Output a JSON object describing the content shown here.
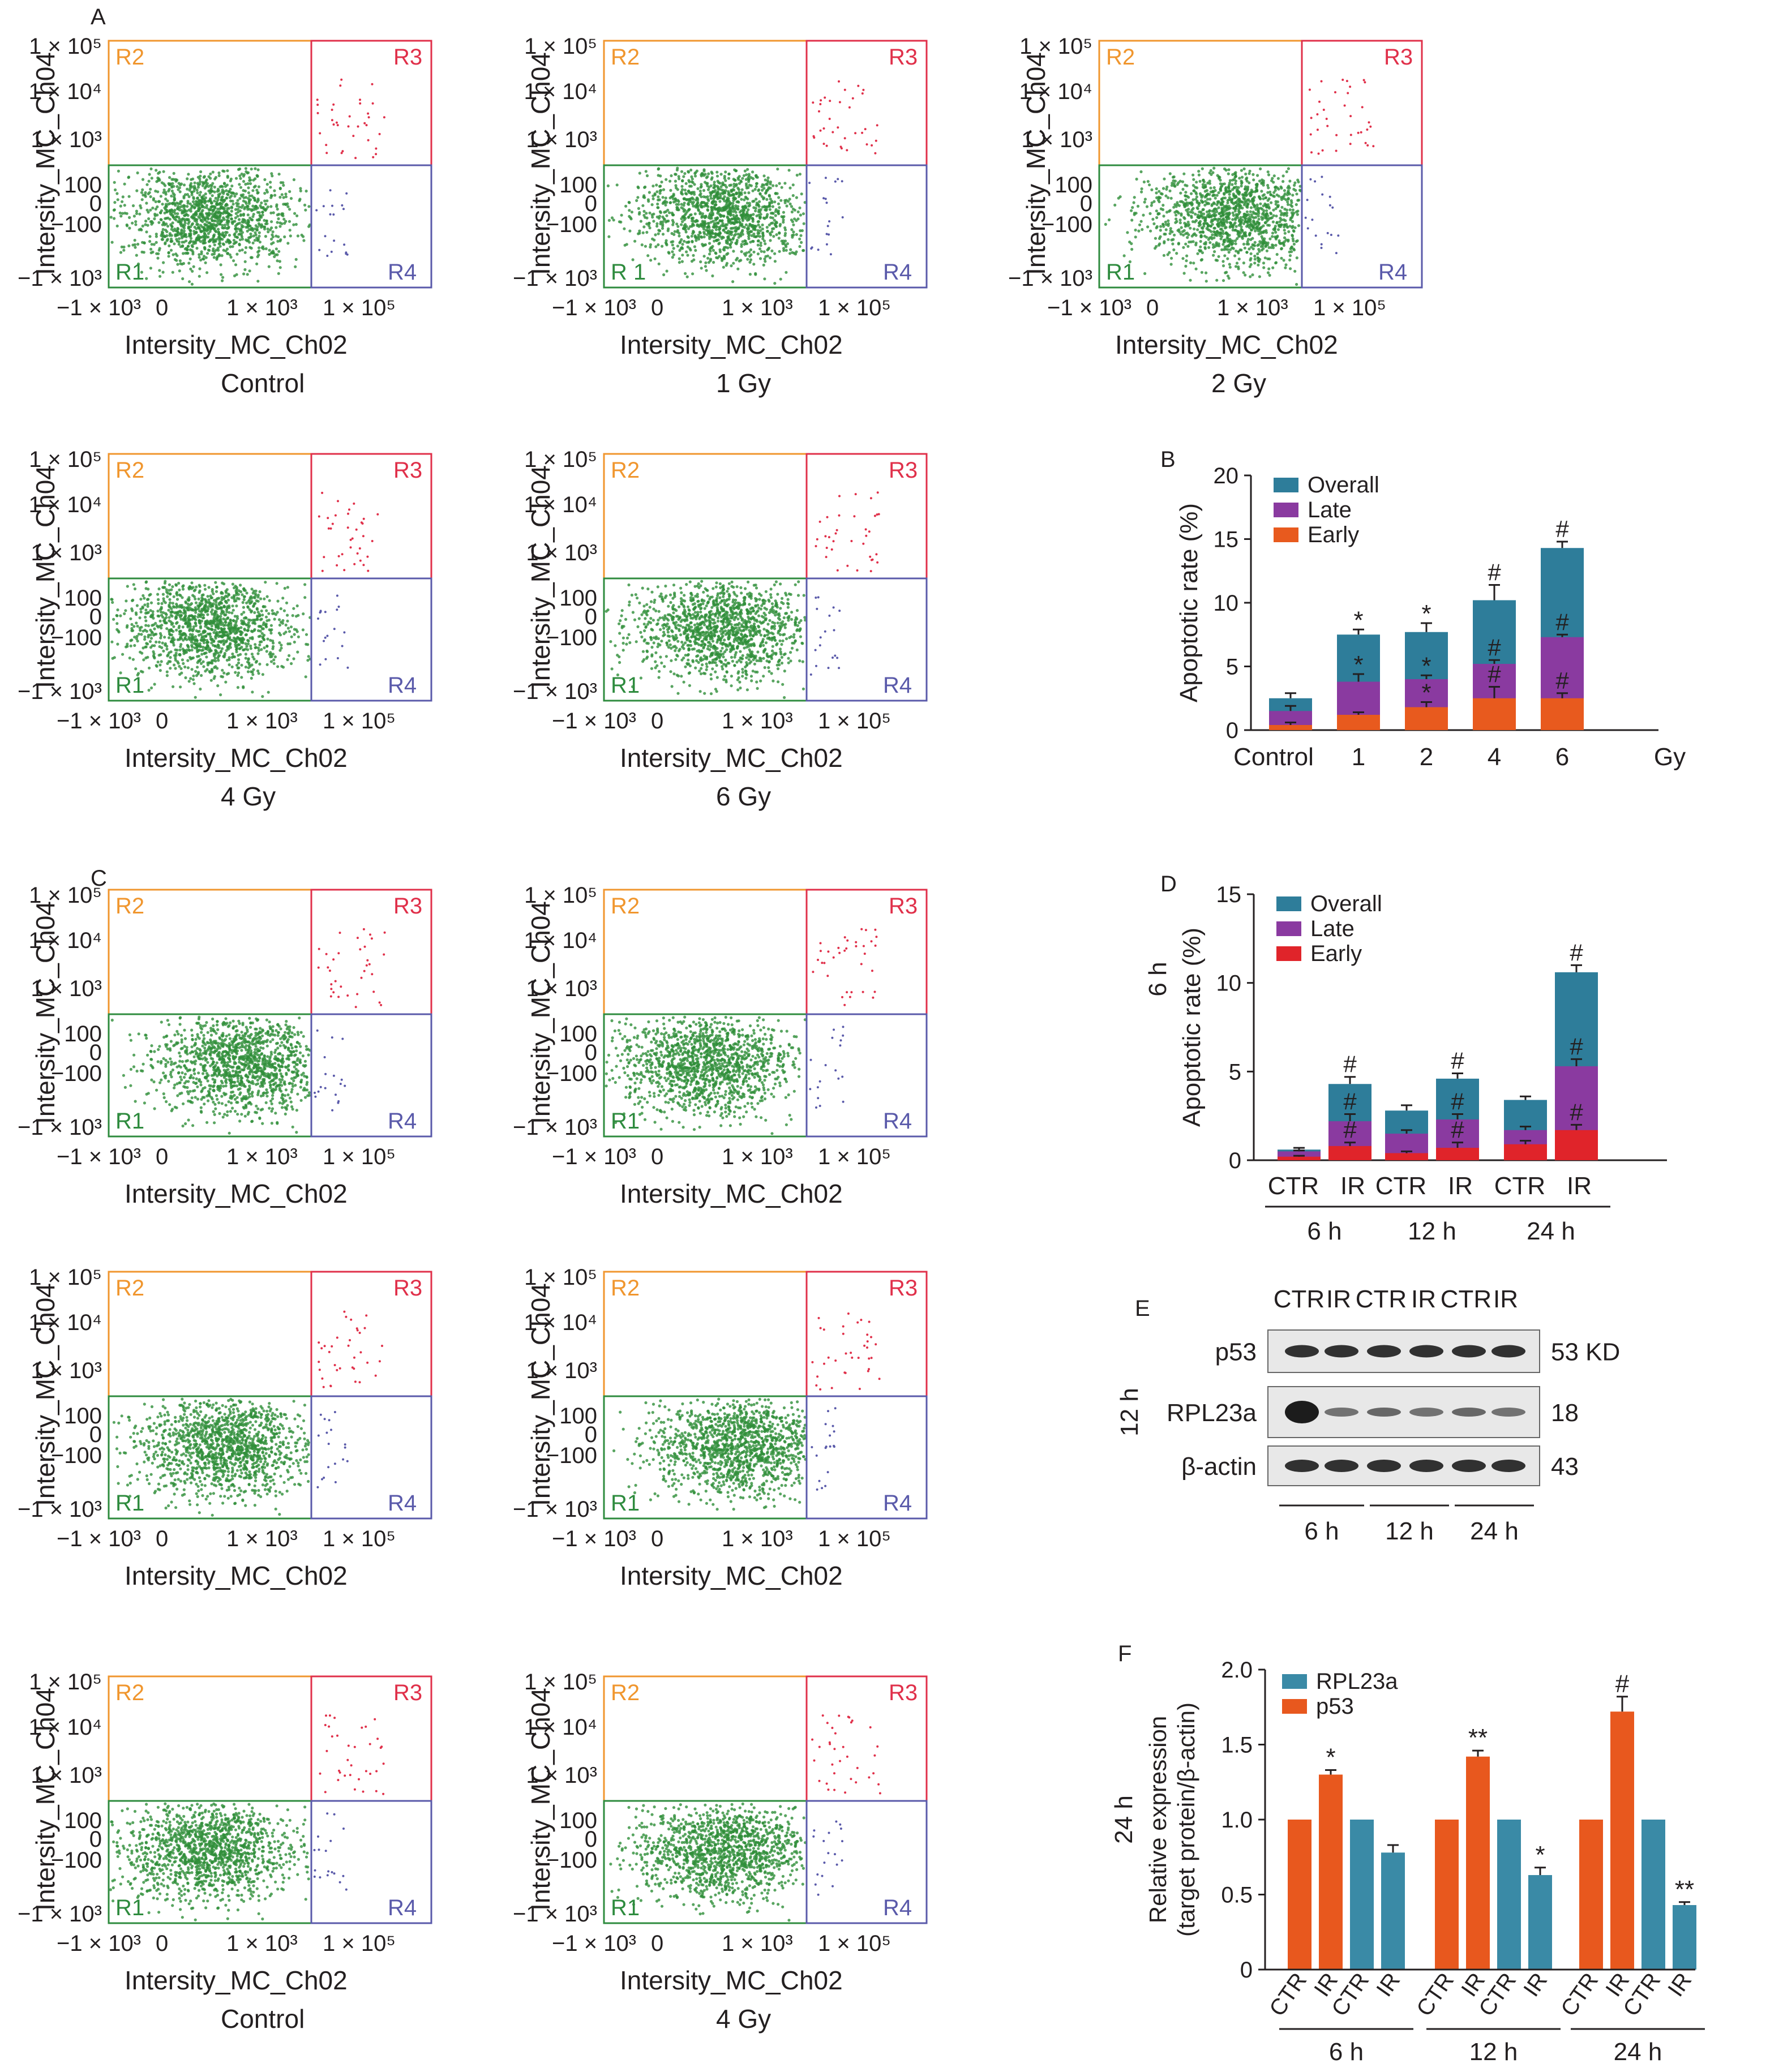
{
  "panel_letters": {
    "a": "A",
    "b": "B",
    "c": "C",
    "d": "D",
    "e": "E",
    "f": "F"
  },
  "flow": {
    "ylabel": "Intersity_MC_Ch04",
    "xlabel": "Intersity_MC_Ch02",
    "yticks": [
      "1 × 10⁵",
      "1 × 10⁴",
      "1 × 10³",
      "100",
      "0",
      "−100",
      "−1 × 10³"
    ],
    "xticks": [
      "−1 × 10³",
      "0",
      "1 × 10³",
      "1 × 10⁵"
    ],
    "colors": {
      "R1": "#2e8b3e",
      "R2": "#f0962e",
      "R3": "#e0304a",
      "R4": "#5a5aaa",
      "dot_green": "#2f8f3a"
    },
    "regions": [
      "R2",
      "R3",
      "R1",
      "R4"
    ],
    "region_r1_alt": "R 1",
    "conditions": {
      "control": "Control",
      "gy1": "1 Gy",
      "gy2": "2 Gy",
      "gy4": "4 Gy",
      "gy6": "6 Gy"
    }
  },
  "panel_b": {
    "ylabel": "Apoptotic rate (%)",
    "unit": "Gy",
    "legend": [
      "Overall",
      "Late",
      "Early"
    ],
    "yticks": [
      "0",
      "5",
      "10",
      "15",
      "20"
    ],
    "marks": {
      "star": "*",
      "hash": "#"
    }
  },
  "panel_d": {
    "ylabel": "Apoptotic rate (%)",
    "side_label": "6 h",
    "legend": [
      "Overall",
      "Late",
      "Early"
    ],
    "yticks": [
      "0",
      "5",
      "10",
      "15"
    ],
    "groups": [
      "6 h",
      "12 h",
      "24 h"
    ],
    "pair": [
      "CTR",
      "IR"
    ],
    "mark": "#"
  },
  "panel_e": {
    "side_label": "12 h",
    "lanes": [
      "CTR",
      "IR",
      "CTR",
      "IR",
      "CTR",
      "IR"
    ],
    "rows": [
      {
        "name": "p53",
        "kd": "53 KD"
      },
      {
        "name": "RPL23a",
        "kd": "18"
      },
      {
        "name": "β-actin",
        "kd": "43"
      }
    ],
    "groups": [
      "6 h",
      "12 h",
      "24 h"
    ]
  },
  "panel_f": {
    "ylabel1": "Relative expression",
    "ylabel2": "(target protein/β-actin)",
    "side_label": "24 h",
    "legend": [
      "RPL23a",
      "p53"
    ],
    "yticks": [
      "0",
      "0.5",
      "1.0",
      "1.5",
      "2.0"
    ],
    "xlabels": [
      "CTR",
      "IR",
      "CTR",
      "IR"
    ],
    "groups": [
      "6 h",
      "12 h",
      "24 h"
    ]
  },
  "chart_data": [
    {
      "type": "bar",
      "panel": "B",
      "stacked": true,
      "categories": [
        "Control",
        "1",
        "2",
        "4",
        "6"
      ],
      "series": [
        {
          "name": "Overall",
          "values": [
            2.5,
            7.5,
            7.7,
            10.2,
            14.3
          ],
          "errors": [
            0.4,
            0.4,
            0.7,
            1.2,
            0.5
          ],
          "marks": [
            "",
            "*",
            "*",
            "#",
            "#"
          ]
        },
        {
          "name": "Late",
          "values": [
            1.5,
            3.8,
            4.0,
            5.2,
            7.3
          ],
          "errors": [
            0.4,
            0.6,
            0.3,
            0.3,
            0.2
          ],
          "marks": [
            "",
            "*",
            "*",
            "#",
            "#"
          ]
        },
        {
          "name": "Early",
          "values": [
            0.4,
            1.2,
            1.8,
            2.5,
            2.5
          ],
          "errors": [
            0.2,
            0.2,
            0.4,
            0.9,
            0.4
          ],
          "marks": [
            "",
            "",
            "*",
            "#",
            "#"
          ]
        }
      ],
      "ylim": [
        0,
        20
      ],
      "colors": {
        "Overall": "#2e7d9a",
        "Late": "#8a3aa0",
        "Early": "#e85a1e"
      }
    },
    {
      "type": "bar",
      "panel": "D",
      "stacked": true,
      "categories": [
        "6 h CTR",
        "6 h IR",
        "12 h CTR",
        "12 h IR",
        "24 h CTR",
        "24 h IR"
      ],
      "series": [
        {
          "name": "Overall",
          "values": [
            0.6,
            4.3,
            2.8,
            4.6,
            3.4,
            10.6
          ],
          "errors": [
            0.1,
            0.4,
            0.3,
            0.3,
            0.2,
            0.4
          ],
          "marks": [
            "",
            "#",
            "",
            "#",
            "",
            "#"
          ]
        },
        {
          "name": "Late",
          "values": [
            0.5,
            2.2,
            1.5,
            2.3,
            1.7,
            5.3
          ],
          "errors": [
            0.05,
            0.4,
            0.2,
            0.3,
            0.2,
            0.4
          ],
          "marks": [
            "",
            "#",
            "",
            "#",
            "",
            "#"
          ]
        },
        {
          "name": "Early",
          "values": [
            0.2,
            0.8,
            0.4,
            0.7,
            0.9,
            1.7
          ],
          "errors": [
            0.05,
            0.2,
            0.1,
            0.3,
            0.2,
            0.3
          ],
          "marks": [
            "",
            "#",
            "",
            "#",
            "",
            "#"
          ]
        }
      ],
      "ylim": [
        0,
        15
      ],
      "colors": {
        "Overall": "#2e7d9a",
        "Late": "#8a3aa0",
        "Early": "#e0242a"
      }
    },
    {
      "type": "bar",
      "panel": "F",
      "categories": [
        "6 h CTR p53",
        "6 h IR p53",
        "6 h CTR RPL23a",
        "6 h IR RPL23a",
        "12 h CTR p53",
        "12 h IR p53",
        "12 h CTR RPL23a",
        "12 h IR RPL23a",
        "24 h CTR p53",
        "24 h IR p53",
        "24 h CTR RPL23a",
        "24 h IR RPL23a"
      ],
      "series": [
        {
          "name": "p53",
          "values": [
            1.0,
            1.3,
            null,
            null,
            1.0,
            1.42,
            null,
            null,
            1.0,
            1.72,
            null,
            null
          ],
          "errors": [
            0,
            0.03,
            null,
            null,
            0,
            0.04,
            null,
            null,
            0,
            0.1,
            null,
            null
          ],
          "marks": [
            "",
            "*",
            "",
            "",
            "",
            "**",
            "",
            "",
            "",
            "#",
            "",
            ""
          ]
        },
        {
          "name": "RPL23a",
          "values": [
            null,
            null,
            1.0,
            0.78,
            null,
            null,
            1.0,
            0.63,
            null,
            null,
            1.0,
            0.43
          ],
          "errors": [
            null,
            null,
            0,
            0.05,
            null,
            null,
            0,
            0.05,
            null,
            null,
            0,
            0.02
          ],
          "marks": [
            "",
            "",
            "",
            "",
            "",
            "",
            "",
            "*",
            "",
            "",
            "",
            "**"
          ]
        }
      ],
      "ylim": [
        0,
        2.0
      ],
      "colors": {
        "RPL23a": "#3a8aa6",
        "p53": "#e8581e"
      }
    }
  ]
}
